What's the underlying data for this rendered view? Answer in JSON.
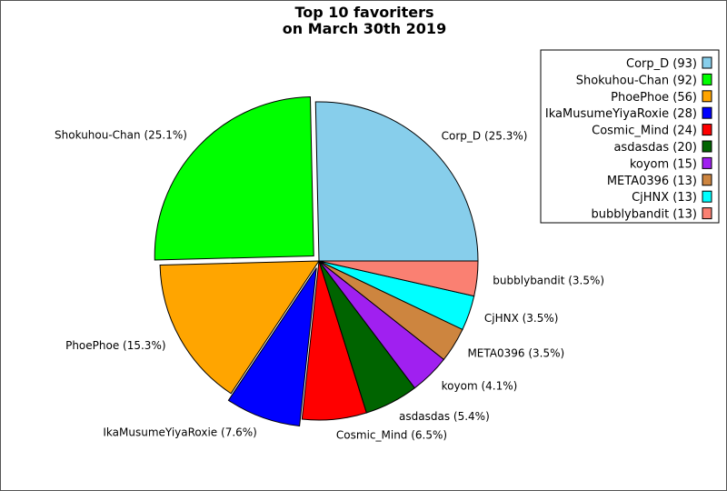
{
  "chart_data": {
    "type": "pie",
    "title_lines": [
      "Top 10 favoriters",
      "on March 30th 2019"
    ],
    "slices": [
      {
        "name": "Corp_D",
        "value": 93,
        "percent_label": "Corp_D (25.3%)",
        "legend_label": "Corp_D (93)",
        "color": "#87CEEB"
      },
      {
        "name": "Shokuhou-Chan",
        "value": 92,
        "percent_label": "Shokuhou-Chan (25.1%)",
        "legend_label": "Shokuhou-Chan (92)",
        "color": "#00FF00"
      },
      {
        "name": "PhoePhoe",
        "value": 56,
        "percent_label": "PhoePhoe (15.3%)",
        "legend_label": "PhoePhoe (56)",
        "color": "#FFA500"
      },
      {
        "name": "IkaMusumeYiyaRoxie",
        "value": 28,
        "percent_label": "IkaMusumeYiyaRoxie (7.6%)",
        "legend_label": "IkaMusumeYiyaRoxie (28)",
        "color": "#0000FF"
      },
      {
        "name": "Cosmic_Mind",
        "value": 24,
        "percent_label": "Cosmic_Mind (6.5%)",
        "legend_label": "Cosmic_Mind (24)",
        "color": "#FF0000"
      },
      {
        "name": "asdasdas",
        "value": 20,
        "percent_label": "asdasdas (5.4%)",
        "legend_label": "asdasdas (20)",
        "color": "#006400"
      },
      {
        "name": "koyom",
        "value": 15,
        "percent_label": "koyom (4.1%)",
        "legend_label": "koyom (15)",
        "color": "#A020F0"
      },
      {
        "name": "META0396",
        "value": 13,
        "percent_label": "META0396 (3.5%)",
        "legend_label": "META0396 (13)",
        "color": "#CD853F"
      },
      {
        "name": "CjHNX",
        "value": 13,
        "percent_label": "CjHNX (3.5%)",
        "legend_label": "CjHNX (13)",
        "color": "#00FFFF"
      },
      {
        "name": "bubblybandit",
        "value": 13,
        "percent_label": "bubblybandit (3.5%)",
        "legend_label": "bubblybandit (13)",
        "color": "#FA8072"
      }
    ],
    "exploded": [
      "Shokuhou-Chan",
      "IkaMusumeYiyaRoxie"
    ],
    "start_angle": "counterclockwise from 3 o'clock",
    "legend_placement": "top-right"
  }
}
